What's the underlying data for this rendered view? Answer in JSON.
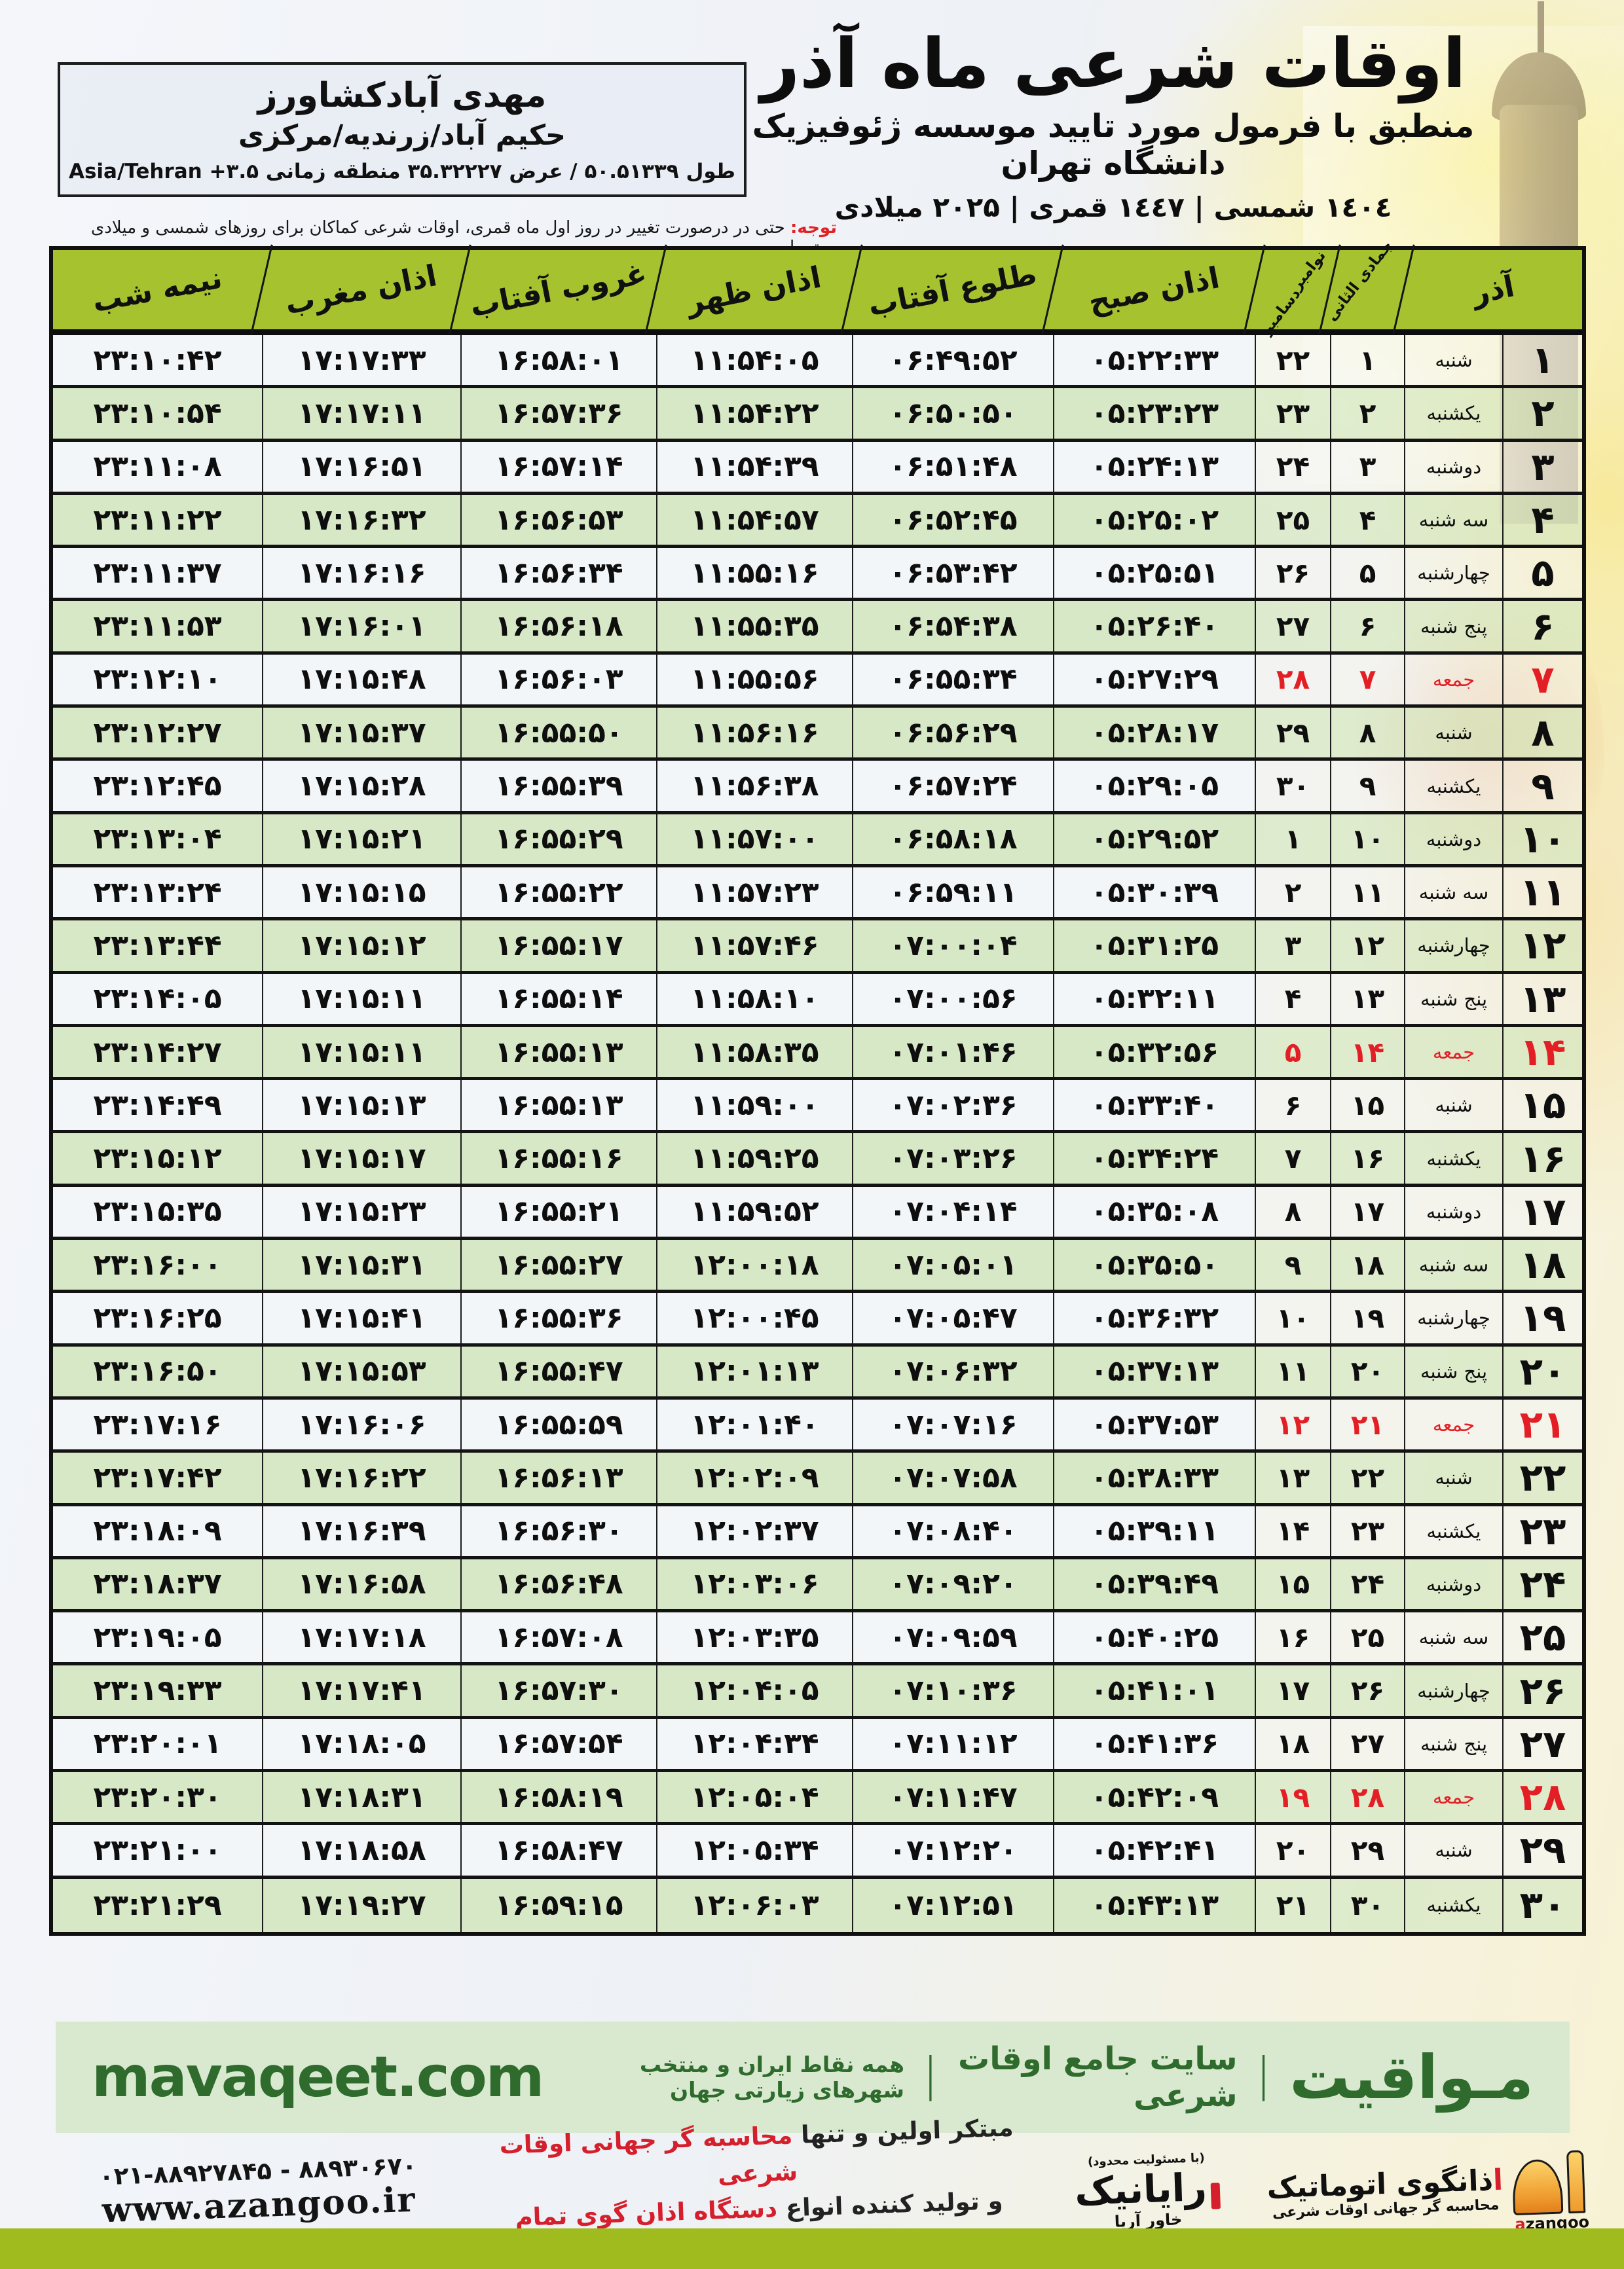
{
  "header": {
    "title": "اوقات شرعی ماه آذر",
    "subtitle": "منطبق با فرمول مورد تایید موسسه ژئوفیزیک دانشگاه تهران",
    "dates_line": "۱٤۰٤ شمسی | ۱٤٤۷ قمری | ۲۰۲۵ میلادی",
    "location": {
      "name": "مهدی آبادکشاورز",
      "region": "حکیم آباد/زرندیه/مرکزی",
      "coords": "طول ۵۰.۵۱۳۳۹ / عرض ۳۵.۳۲۲۲۷ منطقه زمانی ۳.۵+ Asia/Tehran"
    },
    "notice_label": "توجه:",
    "notice_text": " حتی در درصورت تغییر در روز اول ماه قمری، اوقات شرعی کماکان برای روزهای شمسی و میلادی معتبر است."
  },
  "table": {
    "columns": {
      "azar": "آذر",
      "hijri_month": "جمادی الثانی",
      "greg_month_nov": "نوامبر",
      "greg_month_dec": "دسامبر",
      "fajr": "اذان صبح",
      "sunrise": "طلوع آفتاب",
      "dhuhr": "اذان ظهر",
      "sunset": "غروب آفتاب",
      "maghrib": "اذان مغرب",
      "midnight": "نیمه شب"
    },
    "rows": [
      {
        "d": "۱",
        "w": "شنبه",
        "h": "۱",
        "g": "۲۲",
        "sobh": "۰۵:۲۲:۳۳",
        "tolu": "۰۶:۴۹:۵۲",
        "zohr": "۱۱:۵۴:۰۵",
        "ghorub": "۱۶:۵۸:۰۱",
        "maghreb": "۱۷:۱۷:۳۳",
        "nime": "۲۳:۱۰:۴۲",
        "friday": false
      },
      {
        "d": "۲",
        "w": "یکشنبه",
        "h": "۲",
        "g": "۲۳",
        "sobh": "۰۵:۲۳:۲۳",
        "tolu": "۰۶:۵۰:۵۰",
        "zohr": "۱۱:۵۴:۲۲",
        "ghorub": "۱۶:۵۷:۳۶",
        "maghreb": "۱۷:۱۷:۱۱",
        "nime": "۲۳:۱۰:۵۴",
        "friday": false
      },
      {
        "d": "۳",
        "w": "دوشنبه",
        "h": "۳",
        "g": "۲۴",
        "sobh": "۰۵:۲۴:۱۳",
        "tolu": "۰۶:۵۱:۴۸",
        "zohr": "۱۱:۵۴:۳۹",
        "ghorub": "۱۶:۵۷:۱۴",
        "maghreb": "۱۷:۱۶:۵۱",
        "nime": "۲۳:۱۱:۰۸",
        "friday": false
      },
      {
        "d": "۴",
        "w": "سه شنبه",
        "h": "۴",
        "g": "۲۵",
        "sobh": "۰۵:۲۵:۰۲",
        "tolu": "۰۶:۵۲:۴۵",
        "zohr": "۱۱:۵۴:۵۷",
        "ghorub": "۱۶:۵۶:۵۳",
        "maghreb": "۱۷:۱۶:۳۲",
        "nime": "۲۳:۱۱:۲۲",
        "friday": false
      },
      {
        "d": "۵",
        "w": "چهارشنبه",
        "h": "۵",
        "g": "۲۶",
        "sobh": "۰۵:۲۵:۵۱",
        "tolu": "۰۶:۵۳:۴۲",
        "zohr": "۱۱:۵۵:۱۶",
        "ghorub": "۱۶:۵۶:۳۴",
        "maghreb": "۱۷:۱۶:۱۶",
        "nime": "۲۳:۱۱:۳۷",
        "friday": false
      },
      {
        "d": "۶",
        "w": "پنج شنبه",
        "h": "۶",
        "g": "۲۷",
        "sobh": "۰۵:۲۶:۴۰",
        "tolu": "۰۶:۵۴:۳۸",
        "zohr": "۱۱:۵۵:۳۵",
        "ghorub": "۱۶:۵۶:۱۸",
        "maghreb": "۱۷:۱۶:۰۱",
        "nime": "۲۳:۱۱:۵۳",
        "friday": false
      },
      {
        "d": "۷",
        "w": "جمعه",
        "h": "۷",
        "g": "۲۸",
        "sobh": "۰۵:۲۷:۲۹",
        "tolu": "۰۶:۵۵:۳۴",
        "zohr": "۱۱:۵۵:۵۶",
        "ghorub": "۱۶:۵۶:۰۳",
        "maghreb": "۱۷:۱۵:۴۸",
        "nime": "۲۳:۱۲:۱۰",
        "friday": true
      },
      {
        "d": "۸",
        "w": "شنبه",
        "h": "۸",
        "g": "۲۹",
        "sobh": "۰۵:۲۸:۱۷",
        "tolu": "۰۶:۵۶:۲۹",
        "zohr": "۱۱:۵۶:۱۶",
        "ghorub": "۱۶:۵۵:۵۰",
        "maghreb": "۱۷:۱۵:۳۷",
        "nime": "۲۳:۱۲:۲۷",
        "friday": false
      },
      {
        "d": "۹",
        "w": "یکشنبه",
        "h": "۹",
        "g": "۳۰",
        "sobh": "۰۵:۲۹:۰۵",
        "tolu": "۰۶:۵۷:۲۴",
        "zohr": "۱۱:۵۶:۳۸",
        "ghorub": "۱۶:۵۵:۳۹",
        "maghreb": "۱۷:۱۵:۲۸",
        "nime": "۲۳:۱۲:۴۵",
        "friday": false
      },
      {
        "d": "۱۰",
        "w": "دوشنبه",
        "h": "۱۰",
        "g": "۱",
        "sobh": "۰۵:۲۹:۵۲",
        "tolu": "۰۶:۵۸:۱۸",
        "zohr": "۱۱:۵۷:۰۰",
        "ghorub": "۱۶:۵۵:۲۹",
        "maghreb": "۱۷:۱۵:۲۱",
        "nime": "۲۳:۱۳:۰۴",
        "friday": false
      },
      {
        "d": "۱۱",
        "w": "سه شنبه",
        "h": "۱۱",
        "g": "۲",
        "sobh": "۰۵:۳۰:۳۹",
        "tolu": "۰۶:۵۹:۱۱",
        "zohr": "۱۱:۵۷:۲۳",
        "ghorub": "۱۶:۵۵:۲۲",
        "maghreb": "۱۷:۱۵:۱۵",
        "nime": "۲۳:۱۳:۲۴",
        "friday": false
      },
      {
        "d": "۱۲",
        "w": "چهارشنبه",
        "h": "۱۲",
        "g": "۳",
        "sobh": "۰۵:۳۱:۲۵",
        "tolu": "۰۷:۰۰:۰۴",
        "zohr": "۱۱:۵۷:۴۶",
        "ghorub": "۱۶:۵۵:۱۷",
        "maghreb": "۱۷:۱۵:۱۲",
        "nime": "۲۳:۱۳:۴۴",
        "friday": false
      },
      {
        "d": "۱۳",
        "w": "پنج شنبه",
        "h": "۱۳",
        "g": "۴",
        "sobh": "۰۵:۳۲:۱۱",
        "tolu": "۰۷:۰۰:۵۶",
        "zohr": "۱۱:۵۸:۱۰",
        "ghorub": "۱۶:۵۵:۱۴",
        "maghreb": "۱۷:۱۵:۱۱",
        "nime": "۲۳:۱۴:۰۵",
        "friday": false
      },
      {
        "d": "۱۴",
        "w": "جمعه",
        "h": "۱۴",
        "g": "۵",
        "sobh": "۰۵:۳۲:۵۶",
        "tolu": "۰۷:۰۱:۴۶",
        "zohr": "۱۱:۵۸:۳۵",
        "ghorub": "۱۶:۵۵:۱۳",
        "maghreb": "۱۷:۱۵:۱۱",
        "nime": "۲۳:۱۴:۲۷",
        "friday": true
      },
      {
        "d": "۱۵",
        "w": "شنبه",
        "h": "۱۵",
        "g": "۶",
        "sobh": "۰۵:۳۳:۴۰",
        "tolu": "۰۷:۰۲:۳۶",
        "zohr": "۱۱:۵۹:۰۰",
        "ghorub": "۱۶:۵۵:۱۳",
        "maghreb": "۱۷:۱۵:۱۳",
        "nime": "۲۳:۱۴:۴۹",
        "friday": false
      },
      {
        "d": "۱۶",
        "w": "یکشنبه",
        "h": "۱۶",
        "g": "۷",
        "sobh": "۰۵:۳۴:۲۴",
        "tolu": "۰۷:۰۳:۲۶",
        "zohr": "۱۱:۵۹:۲۵",
        "ghorub": "۱۶:۵۵:۱۶",
        "maghreb": "۱۷:۱۵:۱۷",
        "nime": "۲۳:۱۵:۱۲",
        "friday": false
      },
      {
        "d": "۱۷",
        "w": "دوشنبه",
        "h": "۱۷",
        "g": "۸",
        "sobh": "۰۵:۳۵:۰۸",
        "tolu": "۰۷:۰۴:۱۴",
        "zohr": "۱۱:۵۹:۵۲",
        "ghorub": "۱۶:۵۵:۲۱",
        "maghreb": "۱۷:۱۵:۲۳",
        "nime": "۲۳:۱۵:۳۵",
        "friday": false
      },
      {
        "d": "۱۸",
        "w": "سه شنبه",
        "h": "۱۸",
        "g": "۹",
        "sobh": "۰۵:۳۵:۵۰",
        "tolu": "۰۷:۰۵:۰۱",
        "zohr": "۱۲:۰۰:۱۸",
        "ghorub": "۱۶:۵۵:۲۷",
        "maghreb": "۱۷:۱۵:۳۱",
        "nime": "۲۳:۱۶:۰۰",
        "friday": false
      },
      {
        "d": "۱۹",
        "w": "چهارشنبه",
        "h": "۱۹",
        "g": "۱۰",
        "sobh": "۰۵:۳۶:۳۲",
        "tolu": "۰۷:۰۵:۴۷",
        "zohr": "۱۲:۰۰:۴۵",
        "ghorub": "۱۶:۵۵:۳۶",
        "maghreb": "۱۷:۱۵:۴۱",
        "nime": "۲۳:۱۶:۲۵",
        "friday": false
      },
      {
        "d": "۲۰",
        "w": "پنج شنبه",
        "h": "۲۰",
        "g": "۱۱",
        "sobh": "۰۵:۳۷:۱۳",
        "tolu": "۰۷:۰۶:۳۲",
        "zohr": "۱۲:۰۱:۱۳",
        "ghorub": "۱۶:۵۵:۴۷",
        "maghreb": "۱۷:۱۵:۵۳",
        "nime": "۲۳:۱۶:۵۰",
        "friday": false
      },
      {
        "d": "۲۱",
        "w": "جمعه",
        "h": "۲۱",
        "g": "۱۲",
        "sobh": "۰۵:۳۷:۵۳",
        "tolu": "۰۷:۰۷:۱۶",
        "zohr": "۱۲:۰۱:۴۰",
        "ghorub": "۱۶:۵۵:۵۹",
        "maghreb": "۱۷:۱۶:۰۶",
        "nime": "۲۳:۱۷:۱۶",
        "friday": true
      },
      {
        "d": "۲۲",
        "w": "شنبه",
        "h": "۲۲",
        "g": "۱۳",
        "sobh": "۰۵:۳۸:۳۳",
        "tolu": "۰۷:۰۷:۵۸",
        "zohr": "۱۲:۰۲:۰۹",
        "ghorub": "۱۶:۵۶:۱۳",
        "maghreb": "۱۷:۱۶:۲۲",
        "nime": "۲۳:۱۷:۴۲",
        "friday": false
      },
      {
        "d": "۲۳",
        "w": "یکشنبه",
        "h": "۲۳",
        "g": "۱۴",
        "sobh": "۰۵:۳۹:۱۱",
        "tolu": "۰۷:۰۸:۴۰",
        "zohr": "۱۲:۰۲:۳۷",
        "ghorub": "۱۶:۵۶:۳۰",
        "maghreb": "۱۷:۱۶:۳۹",
        "nime": "۲۳:۱۸:۰۹",
        "friday": false
      },
      {
        "d": "۲۴",
        "w": "دوشنبه",
        "h": "۲۴",
        "g": "۱۵",
        "sobh": "۰۵:۳۹:۴۹",
        "tolu": "۰۷:۰۹:۲۰",
        "zohr": "۱۲:۰۳:۰۶",
        "ghorub": "۱۶:۵۶:۴۸",
        "maghreb": "۱۷:۱۶:۵۸",
        "nime": "۲۳:۱۸:۳۷",
        "friday": false
      },
      {
        "d": "۲۵",
        "w": "سه شنبه",
        "h": "۲۵",
        "g": "۱۶",
        "sobh": "۰۵:۴۰:۲۵",
        "tolu": "۰۷:۰۹:۵۹",
        "zohr": "۱۲:۰۳:۳۵",
        "ghorub": "۱۶:۵۷:۰۸",
        "maghreb": "۱۷:۱۷:۱۸",
        "nime": "۲۳:۱۹:۰۵",
        "friday": false
      },
      {
        "d": "۲۶",
        "w": "چهارشنبه",
        "h": "۲۶",
        "g": "۱۷",
        "sobh": "۰۵:۴۱:۰۱",
        "tolu": "۰۷:۱۰:۳۶",
        "zohr": "۱۲:۰۴:۰۵",
        "ghorub": "۱۶:۵۷:۳۰",
        "maghreb": "۱۷:۱۷:۴۱",
        "nime": "۲۳:۱۹:۳۳",
        "friday": false
      },
      {
        "d": "۲۷",
        "w": "پنج شنبه",
        "h": "۲۷",
        "g": "۱۸",
        "sobh": "۰۵:۴۱:۳۶",
        "tolu": "۰۷:۱۱:۱۲",
        "zohr": "۱۲:۰۴:۳۴",
        "ghorub": "۱۶:۵۷:۵۴",
        "maghreb": "۱۷:۱۸:۰۵",
        "nime": "۲۳:۲۰:۰۱",
        "friday": false
      },
      {
        "d": "۲۸",
        "w": "جمعه",
        "h": "۲۸",
        "g": "۱۹",
        "sobh": "۰۵:۴۲:۰۹",
        "tolu": "۰۷:۱۱:۴۷",
        "zohr": "۱۲:۰۵:۰۴",
        "ghorub": "۱۶:۵۸:۱۹",
        "maghreb": "۱۷:۱۸:۳۱",
        "nime": "۲۳:۲۰:۳۰",
        "friday": true
      },
      {
        "d": "۲۹",
        "w": "شنبه",
        "h": "۲۹",
        "g": "۲۰",
        "sobh": "۰۵:۴۲:۴۱",
        "tolu": "۰۷:۱۲:۲۰",
        "zohr": "۱۲:۰۵:۳۴",
        "ghorub": "۱۶:۵۸:۴۷",
        "maghreb": "۱۷:۱۸:۵۸",
        "nime": "۲۳:۲۱:۰۰",
        "friday": false
      },
      {
        "d": "۳۰",
        "w": "یکشنبه",
        "h": "۳۰",
        "g": "۲۱",
        "sobh": "۰۵:۴۳:۱۳",
        "tolu": "۰۷:۱۲:۵۱",
        "zohr": "۱۲:۰۶:۰۳",
        "ghorub": "۱۶:۵۹:۱۵",
        "maghreb": "۱۷:۱۹:۲۷",
        "nime": "۲۳:۲۱:۲۹",
        "friday": false
      }
    ]
  },
  "mavaqeet": {
    "brand": "مـواقیت",
    "sep": "|",
    "tagline1": "سایت جامع اوقات شرعی",
    "tagline2": "همه نقاط ایران و منتخب شهرهای زیارتی جهان",
    "site": "mavaqeet.com"
  },
  "footer": {
    "phones": "۰۲۱-۸۸۹۲۷۸۴۵ - ۸۸۹۳۰۶۷۰",
    "url": "www.azangoo.ir",
    "line1_black": "مبتکر اولین و تنها ",
    "line1_red": "محاسبه گر جهانی اوقات شرعی",
    "line2_black": "و تولید کننده انواع ",
    "line2_red": "دستگاه اذان گوی تمام خودکار ماهواره ای",
    "rayanik_note": "(با مسئولیت محدود)",
    "rayanik_name": "رایانیک",
    "rayanik_sub": "خاور آریا",
    "azangoo_title": "ذانگوی اتوماتیک",
    "azangoo_title_prefix": "ا",
    "azangoo_sub": "محاسبه گر جهانی اوقات شرعی",
    "azangoo_latin_a": "a",
    "azangoo_latin_rest": "zangoo"
  },
  "colors": {
    "header_green": "#a6c32f",
    "row_green": "#d6e7c4",
    "row_white": "#f3f6f9",
    "friday_red": "#e31f25",
    "footer_green_bg": "#d8e9d0",
    "footer_green_text": "#2f6b2d",
    "bottom_strip": "#9fbb1d"
  }
}
